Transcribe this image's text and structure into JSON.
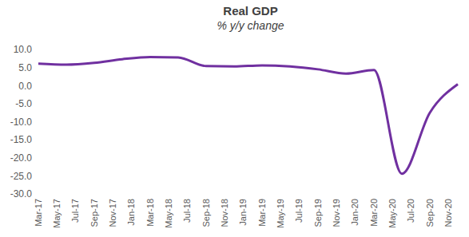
{
  "chart_data": {
    "type": "line",
    "title": "Real GDP",
    "subtitle": "% y/y change",
    "categories": [
      "Mar-17",
      null,
      "May-17",
      null,
      "Jul-17",
      null,
      "Sep-17",
      null,
      "Nov-17",
      null,
      "Jan-18",
      null,
      "Mar-18",
      null,
      "May-18",
      null,
      "Jul-18",
      null,
      "Sep-18",
      null,
      "Nov-18",
      null,
      "Jan-19",
      null,
      "Mar-19",
      null,
      "May-19",
      null,
      "Jul-19",
      null,
      "Sep-19",
      null,
      "Nov-19",
      null,
      "Jan-20",
      null,
      "Mar-20",
      null,
      "May-20",
      null,
      "Jul-20",
      null,
      "Sep-20",
      null,
      "Nov-20",
      null
    ],
    "values": [
      6.1,
      null,
      null,
      5.8,
      null,
      null,
      6.3,
      null,
      null,
      7.3,
      null,
      null,
      7.9,
      null,
      null,
      7.8,
      null,
      null,
      5.4,
      null,
      null,
      5.3,
      null,
      null,
      5.6,
      null,
      null,
      5.3,
      null,
      null,
      4.5,
      null,
      null,
      3.3,
      null,
      null,
      4.3,
      null,
      null,
      -24.4,
      null,
      null,
      -7.5,
      null,
      null,
      0.4
    ],
    "color": "#7030a0",
    "ylim": [
      -30,
      10
    ],
    "yticks": [
      {
        "value": -30,
        "label": "-30.0"
      },
      {
        "value": -25,
        "label": "-25.0"
      },
      {
        "value": -20,
        "label": "-20.0"
      },
      {
        "value": -15,
        "label": "-15.0"
      },
      {
        "value": -10,
        "label": "-10.0"
      },
      {
        "value": -5,
        "label": "-5.0"
      },
      {
        "value": 0,
        "label": "0.0"
      },
      {
        "value": 5,
        "label": "5.0"
      },
      {
        "value": 10,
        "label": "10.0"
      }
    ],
    "grid": false
  }
}
